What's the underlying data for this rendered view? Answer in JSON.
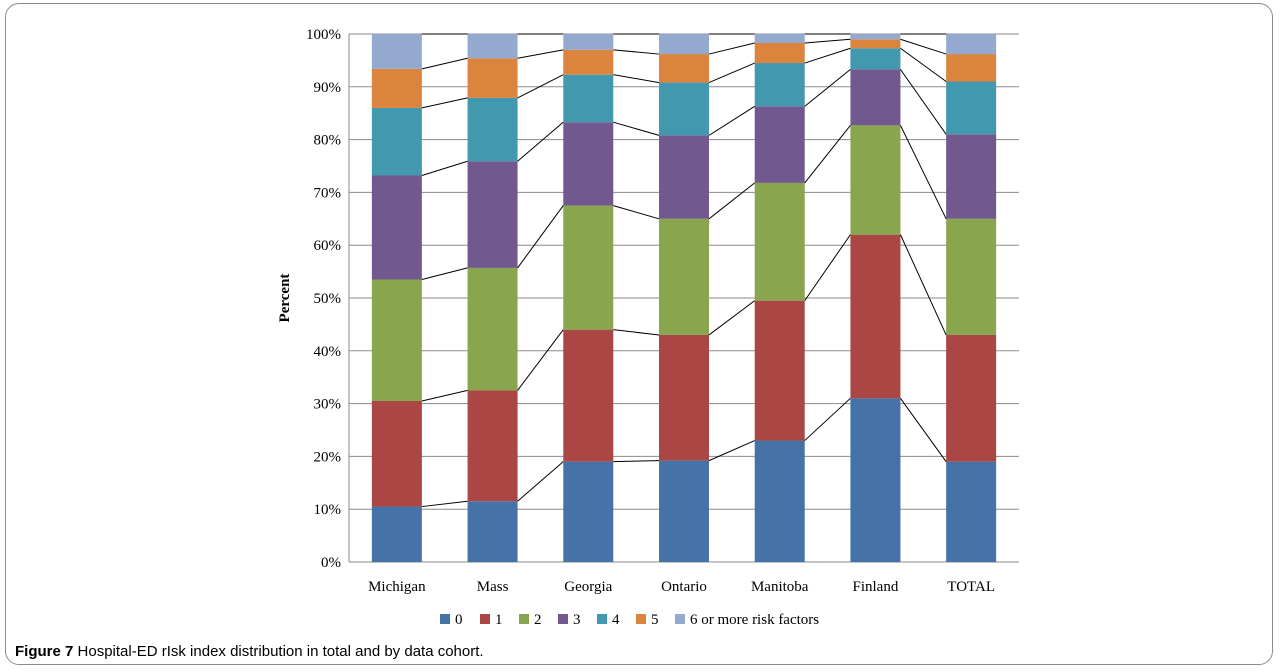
{
  "caption": {
    "label": "Figure 7",
    "text": " Hospital-ED rIsk index distribution in total and by data cohort."
  },
  "chart_data": {
    "type": "bar",
    "stacked": true,
    "percent_stacked": true,
    "ylabel": "Percent",
    "xlabel": "",
    "ylim": [
      0,
      100
    ],
    "ytick_suffix": "%",
    "yticks": [
      0,
      10,
      20,
      30,
      40,
      50,
      60,
      70,
      80,
      90,
      100
    ],
    "grid": true,
    "connector_lines": true,
    "legend_position": "bottom",
    "categories": [
      "Michigan",
      "Mass",
      "Georgia",
      "Ontario",
      "Manitoba",
      "Finland",
      "TOTAL"
    ],
    "series": [
      {
        "name": "0",
        "color": "#4572A7",
        "values": [
          10.5,
          11.5,
          19.0,
          19.2,
          23.0,
          31.0,
          19.0
        ]
      },
      {
        "name": "1",
        "color": "#AA4643",
        "values": [
          20.0,
          21.0,
          25.0,
          23.8,
          26.5,
          31.0,
          24.0
        ]
      },
      {
        "name": "2",
        "color": "#89A54E",
        "values": [
          23.0,
          23.2,
          23.5,
          22.0,
          22.3,
          20.7,
          22.0
        ]
      },
      {
        "name": "3",
        "color": "#71588F",
        "values": [
          19.7,
          20.2,
          15.8,
          15.8,
          14.5,
          10.6,
          16.0
        ]
      },
      {
        "name": "4",
        "color": "#4198AF",
        "values": [
          12.8,
          12.0,
          9.0,
          10.0,
          8.2,
          4.0,
          10.0
        ]
      },
      {
        "name": "5",
        "color": "#DB843D",
        "values": [
          7.4,
          7.5,
          4.7,
          5.4,
          3.8,
          1.7,
          5.2
        ]
      },
      {
        "name": "6 or more risk factors",
        "color": "#93A9CF",
        "values": [
          6.6,
          4.6,
          3.0,
          3.8,
          1.7,
          1.0,
          3.8
        ]
      }
    ]
  }
}
